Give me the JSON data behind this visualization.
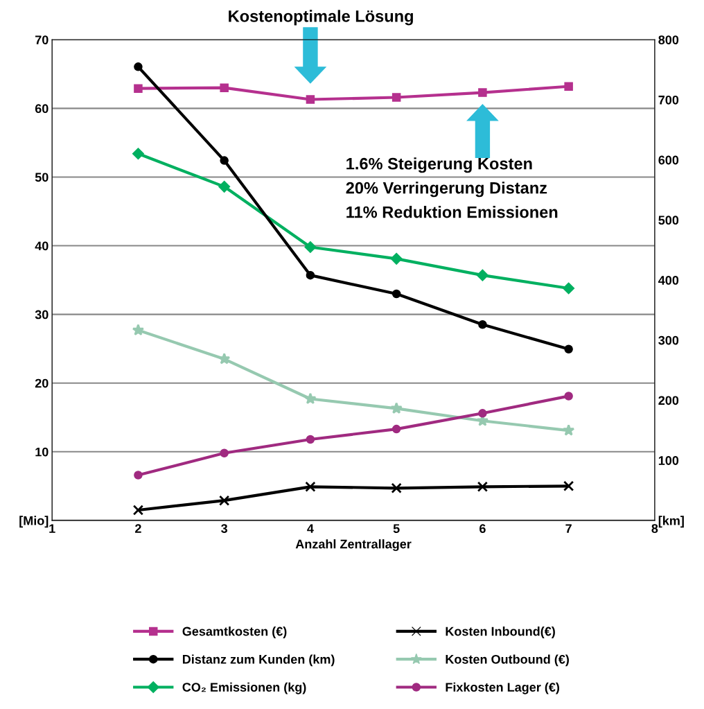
{
  "chart_data": {
    "type": "line",
    "xlabel": "Anzahl Zentrallager",
    "x": [
      2,
      3,
      4,
      5,
      6,
      7
    ],
    "xlim": [
      1,
      8
    ],
    "xticks": [
      1,
      2,
      3,
      4,
      5,
      6,
      7,
      8
    ],
    "ylim": [
      0,
      70
    ],
    "yticks": [
      {
        "value": 0,
        "label": "[Mio]"
      },
      10,
      20,
      30,
      40,
      50,
      60,
      70
    ],
    "y2lim": [
      0,
      800
    ],
    "y2ticks": [
      {
        "value": 0,
        "label": "[km]"
      },
      100,
      200,
      300,
      400,
      500,
      600,
      700,
      800
    ],
    "grid": "y",
    "legend": "bottom",
    "line_style": "solid",
    "series": [
      {
        "name": "Gesamtkosten (€)",
        "color": "#b5308e",
        "marker": "square",
        "values": [
          62.9,
          63.0,
          61.3,
          61.6,
          62.3,
          63.2
        ]
      },
      {
        "name": "Distanz zum Kunden (km)",
        "color": "#000000",
        "marker": "circle",
        "axis": "y2",
        "values": [
          755,
          599,
          408,
          377,
          326,
          285
        ]
      },
      {
        "name": "CO₂ Emissionen (kg)",
        "color": "#00b060",
        "marker": "diamond",
        "values": [
          53.4,
          48.6,
          39.8,
          38.1,
          35.7,
          33.8
        ]
      },
      {
        "name": "Kosten Inbound(€)",
        "color": "#000000",
        "marker": "cross",
        "values": [
          1.5,
          2.9,
          4.9,
          4.7,
          4.9,
          5.0
        ]
      },
      {
        "name": "Kosten Outbound (€)",
        "color": "#96c9b0",
        "marker": "star",
        "values": [
          27.7,
          23.5,
          17.7,
          16.3,
          14.5,
          13.1
        ]
      },
      {
        "name": "Fixkosten Lager (€)",
        "color": "#a02a80",
        "marker": "circle",
        "values": [
          6.6,
          9.8,
          11.8,
          13.3,
          15.6,
          18.1
        ]
      }
    ],
    "annotations": [
      "Kostenoptimale Lösung",
      "1.6% Steigerung Kosten\n20% Verringerung Distanz\n11% Reduktion Emissionen"
    ]
  }
}
